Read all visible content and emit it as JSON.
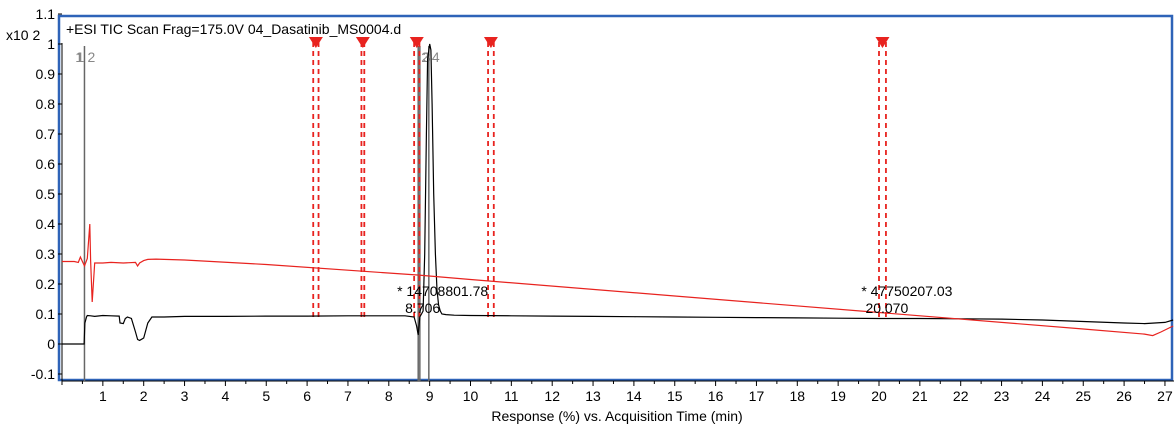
{
  "chart_data": {
    "type": "line",
    "title": "+ESI TIC Scan Frag=175.0V 04_Dasatinib_MS0004.d",
    "y_scale_label": "x10 2",
    "xlabel": "Response (%) vs. Acquisition Time (min)",
    "ylabel": "",
    "xlim": [
      0,
      27.2
    ],
    "ylim": [
      -0.13,
      1.1
    ],
    "x_ticks": [
      1,
      2,
      3,
      4,
      5,
      6,
      7,
      8,
      9,
      10,
      11,
      12,
      13,
      14,
      15,
      16,
      17,
      18,
      19,
      20,
      21,
      22,
      23,
      24,
      25,
      26,
      27
    ],
    "y_ticks": [
      "1.1",
      "1",
      "0.9",
      "0.8",
      "0.7",
      "0.6",
      "0.5",
      "0.4",
      "0.3",
      "0.2",
      "0.1",
      "0",
      "-0.1"
    ],
    "y_tick_values": [
      1.1,
      1,
      0.9,
      0.8,
      0.7,
      0.6,
      0.5,
      0.4,
      0.3,
      0.2,
      0.1,
      0,
      -0.1
    ],
    "markers": [
      {
        "label": "1",
        "x": 0.25
      },
      {
        "label": "1",
        "x": 0.28
      },
      {
        "label": "2",
        "x": 0.55
      },
      {
        "label": "2",
        "x": 8.72
      },
      {
        "label": "3",
        "x": 8.76
      },
      {
        "label": "4",
        "x": 8.98
      }
    ],
    "red_marks": [
      {
        "x1": 6.15,
        "x2": 6.28
      },
      {
        "x1": 7.33,
        "x2": 7.4
      },
      {
        "x1": 8.62,
        "x2": 8.75
      },
      {
        "x1": 10.43,
        "x2": 10.57
      },
      {
        "x1": 20.0,
        "x2": 20.17
      }
    ],
    "annotations": [
      {
        "line1": "* 14708801.78",
        "line2": "8.706",
        "x": 8.706
      },
      {
        "line1": "* 47750207.03",
        "line2": "20.070",
        "x": 20.07
      }
    ],
    "series": [
      {
        "color": "#000000",
        "x": [
          0,
          0.5,
          0.54,
          0.56,
          0.6,
          0.62,
          0.7,
          0.8,
          1.0,
          1.2,
          1.4,
          1.42,
          1.5,
          1.55,
          1.6,
          1.7,
          1.8,
          1.85,
          1.9,
          2.0,
          2.1,
          2.2,
          2.5,
          3,
          4,
          5,
          6,
          7,
          8,
          8.4,
          8.62,
          8.68,
          8.72,
          8.76,
          8.8,
          8.84,
          8.88,
          8.92,
          8.95,
          9.0,
          9.03,
          9.06,
          9.1,
          9.14,
          9.18,
          9.22,
          9.26,
          9.3,
          9.4,
          9.6,
          10,
          11,
          12,
          13,
          14,
          15,
          16,
          17,
          18,
          19,
          20,
          21,
          22,
          23,
          24,
          25,
          26,
          26.5,
          27,
          27.2
        ],
        "y": [
          0,
          0,
          0,
          0.07,
          0.09,
          0.095,
          0.094,
          0.092,
          0.095,
          0.094,
          0.093,
          0.07,
          0.068,
          0.085,
          0.09,
          0.085,
          0.04,
          0.015,
          0.012,
          0.02,
          0.07,
          0.09,
          0.09,
          0.092,
          0.092,
          0.093,
          0.093,
          0.094,
          0.094,
          0.094,
          0.09,
          0.06,
          0.03,
          0.09,
          0.1,
          0.11,
          0.3,
          0.7,
          0.95,
          1.0,
          0.98,
          0.8,
          0.5,
          0.3,
          0.18,
          0.13,
          0.11,
          0.1,
          0.098,
          0.096,
          0.095,
          0.094,
          0.093,
          0.092,
          0.091,
          0.09,
          0.089,
          0.088,
          0.087,
          0.086,
          0.085,
          0.085,
          0.084,
          0.083,
          0.08,
          0.075,
          0.07,
          0.068,
          0.072,
          0.08
        ]
      },
      {
        "color": "#e8231f",
        "x": [
          0,
          0.3,
          0.4,
          0.45,
          0.5,
          0.55,
          0.62,
          0.68,
          0.7,
          0.74,
          0.8,
          1.0,
          1.2,
          1.5,
          1.8,
          1.85,
          1.9,
          2.0,
          2.1,
          2.3,
          2.5,
          3,
          5,
          8.7,
          10,
          15,
          20,
          25,
          26.5,
          26.7,
          26.9,
          27.2
        ],
        "y": [
          0.275,
          0.275,
          0.272,
          0.29,
          0.275,
          0.26,
          0.285,
          0.4,
          0.28,
          0.14,
          0.27,
          0.27,
          0.272,
          0.27,
          0.272,
          0.26,
          0.27,
          0.278,
          0.282,
          0.283,
          0.282,
          0.28,
          0.265,
          0.23,
          0.215,
          0.16,
          0.105,
          0.05,
          0.033,
          0.028,
          0.04,
          0.06
        ]
      }
    ]
  }
}
